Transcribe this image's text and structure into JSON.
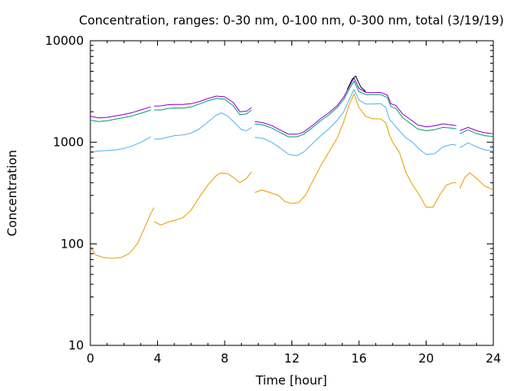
{
  "chart_data": {
    "type": "line",
    "title": "Concentration, ranges: 0-30 nm, 0-100 nm, 0-300 nm, total (3/19/19)",
    "xlabel": "Time [hour]",
    "ylabel": "Concentration",
    "xlim": [
      0,
      24
    ],
    "ylim": [
      10,
      10000
    ],
    "yscale": "log",
    "grid": false,
    "legend": "none",
    "xticks": [
      "0",
      "4",
      "8",
      "12",
      "16",
      "20",
      "24"
    ],
    "yticks": [
      "10",
      "100",
      "1000",
      "10000"
    ],
    "series": [
      {
        "color": "#9400d3",
        "segments": [
          [
            [
              0,
              1800
            ],
            [
              0.5,
              1740
            ],
            [
              1,
              1760
            ],
            [
              1.5,
              1820
            ],
            [
              2,
              1880
            ],
            [
              2.5,
              1960
            ],
            [
              3,
              2080
            ],
            [
              3.6,
              2230
            ]
          ],
          [
            [
              3.8,
              2270
            ],
            [
              4.2,
              2280
            ],
            [
              4.6,
              2340
            ],
            [
              5,
              2360
            ],
            [
              5.5,
              2360
            ],
            [
              6,
              2400
            ],
            [
              6.5,
              2520
            ],
            [
              7,
              2700
            ],
            [
              7.5,
              2850
            ],
            [
              8,
              2800
            ],
            [
              8.5,
              2480
            ],
            [
              8.9,
              2000
            ],
            [
              9.3,
              2020
            ],
            [
              9.6,
              2200
            ]
          ],
          [
            [
              9.8,
              1600
            ],
            [
              10.3,
              1560
            ],
            [
              10.8,
              1460
            ],
            [
              11.3,
              1320
            ],
            [
              11.8,
              1200
            ],
            [
              12.3,
              1200
            ],
            [
              12.7,
              1260
            ],
            [
              13.2,
              1450
            ],
            [
              13.7,
              1700
            ],
            [
              14.2,
              1950
            ],
            [
              14.7,
              2300
            ],
            [
              15.1,
              2800
            ],
            [
              15.4,
              3500
            ],
            [
              15.7,
              4300
            ],
            [
              16,
              3400
            ],
            [
              16.4,
              3100
            ],
            [
              16.8,
              3080
            ],
            [
              17.3,
              3100
            ],
            [
              17.7,
              2900
            ],
            [
              17.9,
              2400
            ],
            [
              18.2,
              2300
            ],
            [
              18.6,
              1900
            ],
            [
              19,
              1700
            ],
            [
              19.5,
              1480
            ],
            [
              20,
              1420
            ],
            [
              20.5,
              1450
            ],
            [
              21,
              1520
            ],
            [
              21.5,
              1480
            ],
            [
              21.8,
              1460
            ]
          ],
          [
            [
              22,
              1300
            ],
            [
              22.5,
              1400
            ],
            [
              23,
              1300
            ],
            [
              23.5,
              1240
            ],
            [
              24,
              1210
            ]
          ]
        ]
      },
      {
        "color": "#000000",
        "segments": [
          [
            [
              15.3,
              3300
            ],
            [
              15.6,
              4200
            ],
            [
              15.8,
              4500
            ],
            [
              16.1,
              3500
            ],
            [
              16.4,
              3150
            ]
          ]
        ]
      },
      {
        "color": "#009e73",
        "segments": [
          [
            [
              0,
              1650
            ],
            [
              0.5,
              1600
            ],
            [
              1,
              1630
            ],
            [
              1.5,
              1690
            ],
            [
              2,
              1750
            ],
            [
              2.5,
              1820
            ],
            [
              3,
              1930
            ],
            [
              3.6,
              2080
            ]
          ],
          [
            [
              3.8,
              2080
            ],
            [
              4.2,
              2080
            ],
            [
              4.6,
              2150
            ],
            [
              5,
              2180
            ],
            [
              5.5,
              2170
            ],
            [
              6,
              2230
            ],
            [
              6.5,
              2380
            ],
            [
              7,
              2570
            ],
            [
              7.5,
              2700
            ],
            [
              8,
              2650
            ],
            [
              8.5,
              2300
            ],
            [
              8.9,
              1870
            ],
            [
              9.3,
              1900
            ],
            [
              9.6,
              2080
            ]
          ],
          [
            [
              9.8,
              1520
            ],
            [
              10.3,
              1480
            ],
            [
              10.8,
              1380
            ],
            [
              11.3,
              1250
            ],
            [
              11.8,
              1130
            ],
            [
              12.3,
              1130
            ],
            [
              12.7,
              1200
            ],
            [
              13.2,
              1380
            ],
            [
              13.7,
              1620
            ],
            [
              14.2,
              1860
            ],
            [
              14.7,
              2200
            ],
            [
              15.1,
              2650
            ],
            [
              15.4,
              3300
            ],
            [
              15.7,
              4000
            ],
            [
              16,
              3150
            ],
            [
              16.4,
              2950
            ],
            [
              16.8,
              2950
            ],
            [
              17.3,
              2950
            ],
            [
              17.7,
              2750
            ],
            [
              17.9,
              2250
            ],
            [
              18.2,
              2150
            ],
            [
              18.6,
              1750
            ],
            [
              19,
              1560
            ],
            [
              19.5,
              1350
            ],
            [
              20,
              1300
            ],
            [
              20.5,
              1330
            ],
            [
              21,
              1400
            ],
            [
              21.5,
              1380
            ],
            [
              21.8,
              1360
            ]
          ],
          [
            [
              22,
              1220
            ],
            [
              22.5,
              1320
            ],
            [
              23,
              1220
            ],
            [
              23.5,
              1160
            ],
            [
              24,
              1140
            ]
          ]
        ]
      },
      {
        "color": "#56b4e9",
        "segments": [
          [
            [
              0,
              800
            ],
            [
              0.5,
              820
            ],
            [
              1,
              830
            ],
            [
              1.5,
              840
            ],
            [
              2,
              870
            ],
            [
              2.5,
              920
            ],
            [
              3,
              1000
            ],
            [
              3.6,
              1130
            ]
          ],
          [
            [
              3.8,
              1070
            ],
            [
              4.2,
              1080
            ],
            [
              4.6,
              1120
            ],
            [
              5,
              1160
            ],
            [
              5.5,
              1180
            ],
            [
              6,
              1230
            ],
            [
              6.5,
              1360
            ],
            [
              7,
              1580
            ],
            [
              7.5,
              1850
            ],
            [
              7.8,
              1950
            ],
            [
              8.2,
              1800
            ],
            [
              8.6,
              1550
            ],
            [
              9,
              1330
            ],
            [
              9.3,
              1300
            ],
            [
              9.6,
              1400
            ]
          ],
          [
            [
              9.8,
              1120
            ],
            [
              10.3,
              1090
            ],
            [
              10.8,
              1000
            ],
            [
              11.3,
              880
            ],
            [
              11.8,
              760
            ],
            [
              12.3,
              740
            ],
            [
              12.7,
              800
            ],
            [
              13.2,
              960
            ],
            [
              13.7,
              1150
            ],
            [
              14.2,
              1350
            ],
            [
              14.7,
              1650
            ],
            [
              15.1,
              2000
            ],
            [
              15.4,
              2600
            ],
            [
              15.7,
              3300
            ],
            [
              16,
              2600
            ],
            [
              16.4,
              2380
            ],
            [
              16.8,
              2380
            ],
            [
              17.3,
              2400
            ],
            [
              17.6,
              2200
            ],
            [
              17.8,
              1700
            ],
            [
              18,
              1550
            ],
            [
              18.4,
              1300
            ],
            [
              18.8,
              1100
            ],
            [
              19.2,
              1000
            ],
            [
              19.6,
              850
            ],
            [
              20,
              760
            ],
            [
              20.5,
              770
            ],
            [
              21,
              900
            ],
            [
              21.5,
              950
            ],
            [
              21.8,
              940
            ]
          ],
          [
            [
              22,
              880
            ],
            [
              22.5,
              990
            ],
            [
              23,
              900
            ],
            [
              23.5,
              840
            ],
            [
              24,
              820
            ]
          ]
        ]
      },
      {
        "color": "#e69f00",
        "segments": [
          [
            [
              0,
              95
            ],
            [
              0.3,
              78
            ],
            [
              0.8,
              73
            ],
            [
              1.3,
              72
            ],
            [
              1.8,
              73
            ],
            [
              2.3,
              80
            ],
            [
              2.8,
              100
            ],
            [
              3.2,
              140
            ],
            [
              3.6,
              200
            ],
            [
              3.8,
              228
            ]
          ],
          [
            [
              3.8,
              165
            ],
            [
              4.2,
              153
            ],
            [
              4.6,
              163
            ],
            [
              5,
              170
            ],
            [
              5.5,
              180
            ],
            [
              6,
              215
            ],
            [
              6.5,
              290
            ],
            [
              7,
              380
            ],
            [
              7.5,
              470
            ],
            [
              7.8,
              500
            ],
            [
              8.2,
              490
            ],
            [
              8.6,
              440
            ],
            [
              8.9,
              400
            ],
            [
              9.3,
              440
            ],
            [
              9.6,
              510
            ]
          ],
          [
            [
              9.8,
              320
            ],
            [
              10.2,
              340
            ],
            [
              10.7,
              320
            ],
            [
              11.2,
              300
            ],
            [
              11.6,
              260
            ],
            [
              12,
              250
            ],
            [
              12.4,
              255
            ],
            [
              12.8,
              300
            ],
            [
              13.2,
              400
            ],
            [
              13.7,
              580
            ],
            [
              14.2,
              800
            ],
            [
              14.7,
              1100
            ],
            [
              15.1,
              1600
            ],
            [
              15.4,
              2300
            ],
            [
              15.7,
              3000
            ],
            [
              16,
              2200
            ],
            [
              16.4,
              1800
            ],
            [
              16.8,
              1700
            ],
            [
              17.3,
              1700
            ],
            [
              17.6,
              1550
            ],
            [
              17.8,
              1200
            ],
            [
              18,
              1000
            ],
            [
              18.4,
              800
            ],
            [
              18.8,
              500
            ],
            [
              19.2,
              380
            ],
            [
              19.6,
              300
            ],
            [
              20,
              230
            ],
            [
              20.4,
              230
            ],
            [
              20.8,
              300
            ],
            [
              21.2,
              380
            ],
            [
              21.6,
              400
            ],
            [
              21.8,
              400
            ]
          ],
          [
            [
              22,
              350
            ],
            [
              22.3,
              450
            ],
            [
              22.6,
              500
            ],
            [
              23,
              440
            ],
            [
              23.5,
              370
            ],
            [
              24,
              340
            ]
          ]
        ]
      }
    ]
  }
}
